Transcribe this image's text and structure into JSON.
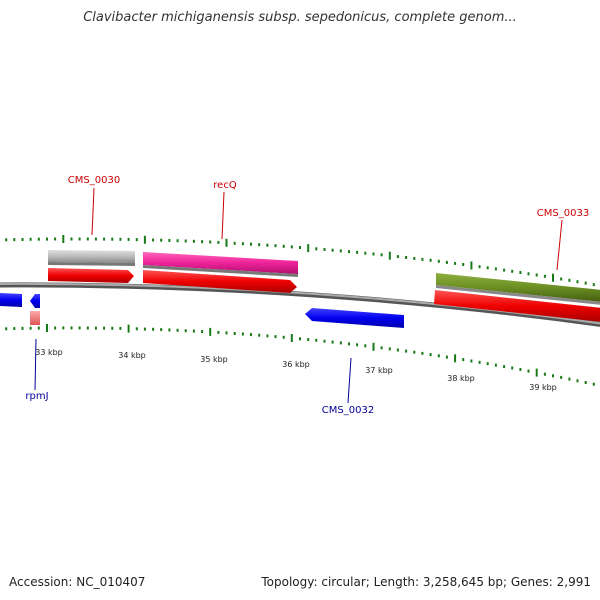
{
  "title": "Clavibacter michiganensis subsp. sepedonicus, complete genom...",
  "footer": {
    "accession": "Accession: NC_010407",
    "summary": "Topology: circular; Length: 3,258,645 bp; Genes: 2,991"
  },
  "ruler": {
    "ticks": [
      "33 kbp",
      "34 kbp",
      "35 kbp",
      "36 kbp",
      "37 kbp",
      "38 kbp",
      "39 kbp"
    ]
  },
  "genes": [
    {
      "id": "rpmJ",
      "label": "rpmJ",
      "strand": "reverse",
      "label_color": "#000099"
    },
    {
      "id": "CMS_0030",
      "label": "CMS_0030",
      "strand": "forward",
      "label_color": "#cc0000"
    },
    {
      "id": "recQ",
      "label": "recQ",
      "strand": "forward",
      "label_color": "#cc0000"
    },
    {
      "id": "CMS_0032",
      "label": "CMS_0032",
      "strand": "reverse",
      "label_color": "#000099"
    },
    {
      "id": "CMS_0033",
      "label": "CMS_0033",
      "strand": "forward",
      "label_color": "#cc0000"
    }
  ],
  "colors": {
    "backbone": "#888888",
    "tick_green": "#1a7a1a",
    "cds_forward": "#ee1111",
    "cds_reverse": "#0a0aee",
    "feature_gray": "#bbbbbb",
    "feature_pink": "#ee2299",
    "feature_olive": "#6b8e23",
    "feature_lightred": "#ee7777"
  }
}
